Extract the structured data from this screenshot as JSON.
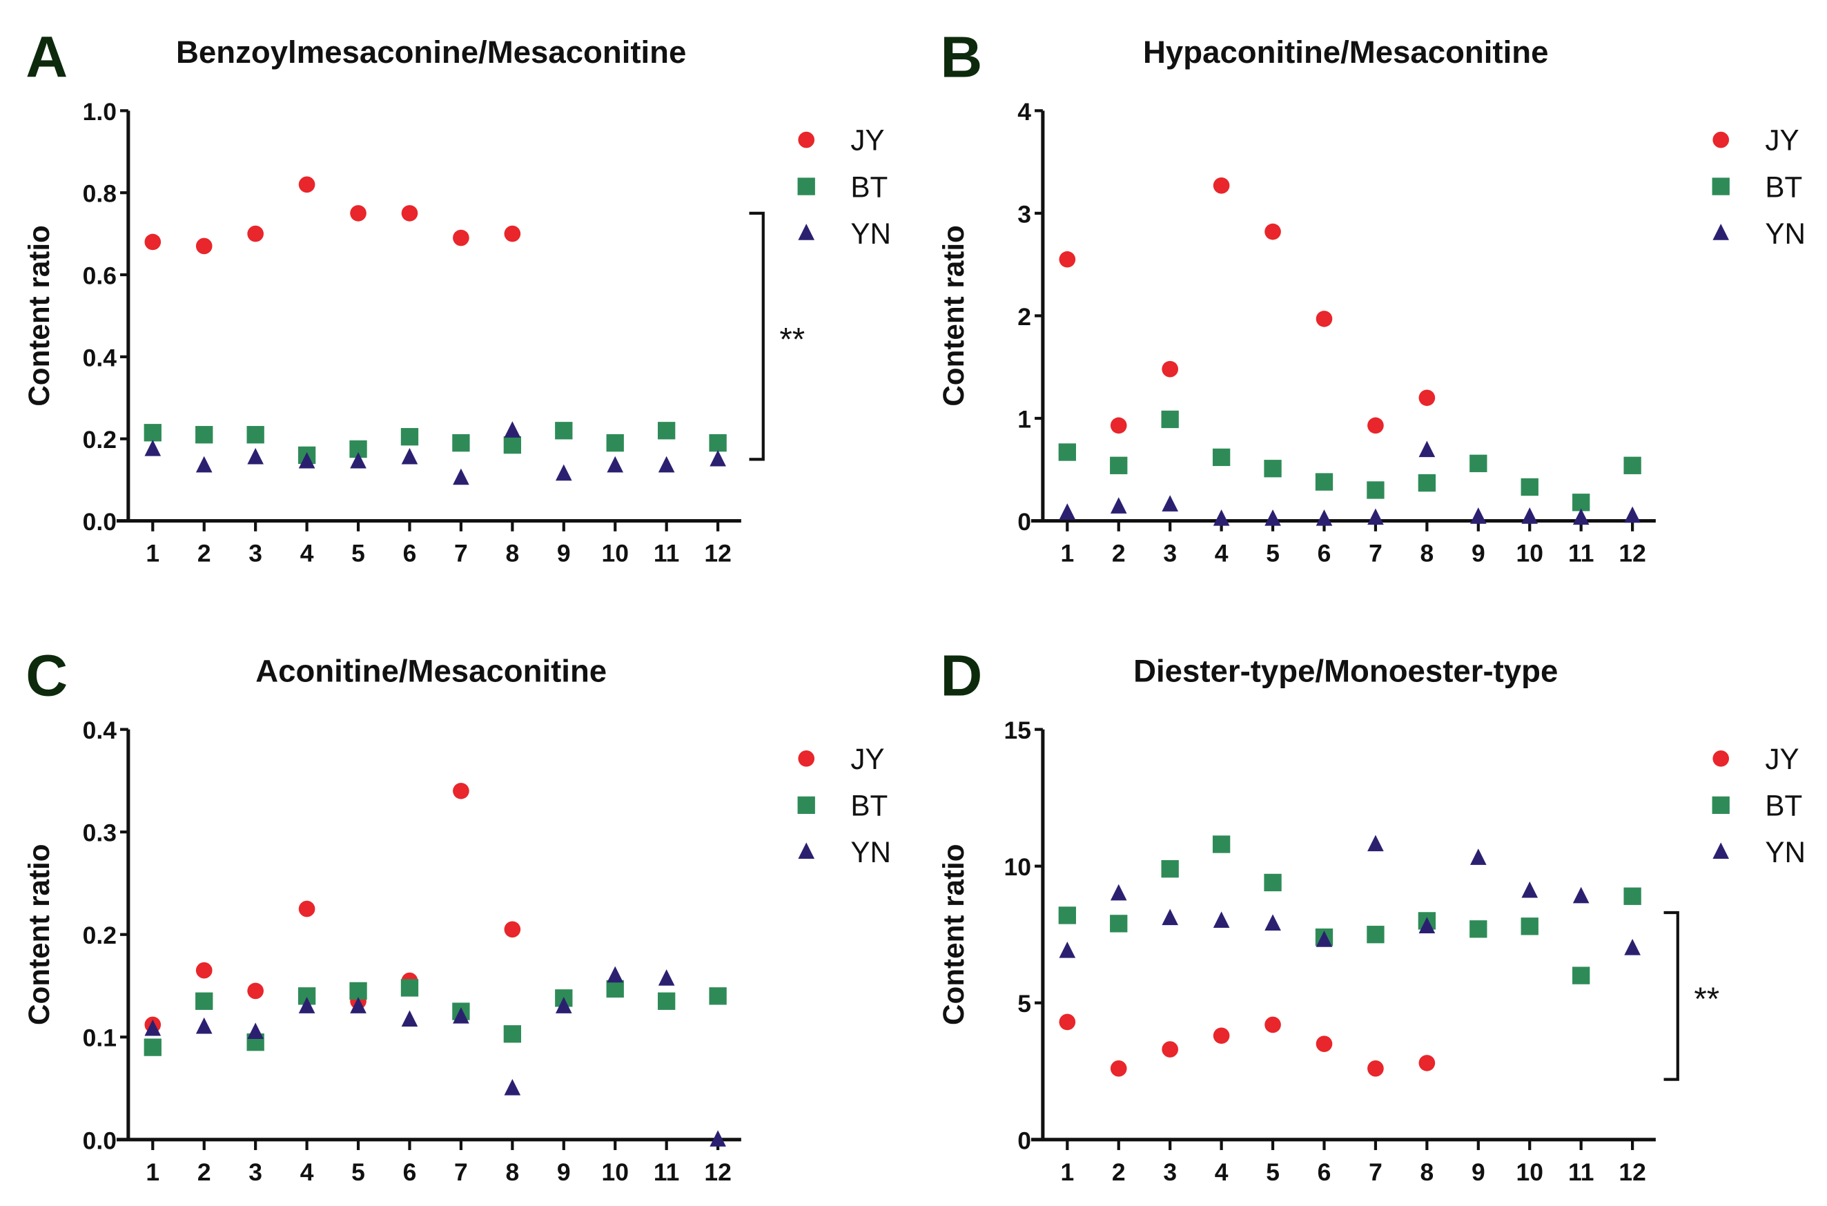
{
  "chart_data": [
    {
      "type": "scatter",
      "panel_letter": "A",
      "title": "Benzoylmesaconine/Mesaconitine",
      "xlabel": "",
      "ylabel": "Content ratio",
      "x": [
        1,
        2,
        3,
        4,
        5,
        6,
        7,
        8,
        9,
        10,
        11,
        12
      ],
      "ylim": [
        0,
        1.0
      ],
      "yticks": [
        "0.0",
        "0.2",
        "0.4",
        "0.6",
        "0.8",
        "1.0"
      ],
      "ytick_values": [
        0,
        0.2,
        0.4,
        0.6,
        0.8,
        1.0
      ],
      "legend_position": "right",
      "series": [
        {
          "name": "JY",
          "marker": "circle",
          "color": "#e8262b",
          "values": [
            0.68,
            0.67,
            0.7,
            0.82,
            0.75,
            0.75,
            0.69,
            0.7
          ]
        },
        {
          "name": "BT",
          "marker": "square",
          "color": "#2e8b57",
          "values": [
            0.215,
            0.21,
            0.21,
            0.16,
            0.175,
            0.205,
            0.19,
            0.185,
            0.22,
            0.19,
            0.22,
            0.19
          ]
        },
        {
          "name": "YN",
          "marker": "triangle",
          "color": "#2b2070",
          "values": [
            0.175,
            0.135,
            0.155,
            0.145,
            0.145,
            0.155,
            0.105,
            0.22,
            0.115,
            0.135,
            0.135,
            0.15
          ]
        }
      ],
      "significance": {
        "label": "**",
        "range": [
          0.15,
          0.75
        ]
      }
    },
    {
      "type": "scatter",
      "panel_letter": "B",
      "title": "Hypaconitine/Mesaconitine",
      "xlabel": "",
      "ylabel": "Content ratio",
      "x": [
        1,
        2,
        3,
        4,
        5,
        6,
        7,
        8,
        9,
        10,
        11,
        12
      ],
      "ylim": [
        0,
        4
      ],
      "yticks": [
        "0",
        "1",
        "2",
        "3",
        "4"
      ],
      "ytick_values": [
        0,
        1,
        2,
        3,
        4
      ],
      "legend_position": "right",
      "series": [
        {
          "name": "JY",
          "marker": "circle",
          "color": "#e8262b",
          "values": [
            2.55,
            0.93,
            1.48,
            3.27,
            2.82,
            1.97,
            0.93,
            1.2
          ]
        },
        {
          "name": "BT",
          "marker": "square",
          "color": "#2e8b57",
          "values": [
            0.67,
            0.54,
            0.99,
            0.62,
            0.51,
            0.38,
            0.3,
            0.37,
            0.56,
            0.33,
            0.18,
            0.54
          ]
        },
        {
          "name": "YN",
          "marker": "triangle",
          "color": "#2b2070",
          "values": [
            0.08,
            0.14,
            0.16,
            0.02,
            0.02,
            0.02,
            0.03,
            0.69,
            0.04,
            0.04,
            0.03,
            0.05
          ]
        }
      ]
    },
    {
      "type": "scatter",
      "panel_letter": "C",
      "title": "Aconitine/Mesaconitine",
      "xlabel": "",
      "ylabel": "Content ratio",
      "x": [
        1,
        2,
        3,
        4,
        5,
        6,
        7,
        8,
        9,
        10,
        11,
        12
      ],
      "ylim": [
        0,
        0.4
      ],
      "yticks": [
        "0.0",
        "0.1",
        "0.2",
        "0.3",
        "0.4"
      ],
      "ytick_values": [
        0,
        0.1,
        0.2,
        0.3,
        0.4
      ],
      "legend_position": "right",
      "series": [
        {
          "name": "JY",
          "marker": "circle",
          "color": "#e8262b",
          "values": [
            0.112,
            0.165,
            0.145,
            0.225,
            0.135,
            0.155,
            0.34,
            0.205
          ]
        },
        {
          "name": "BT",
          "marker": "square",
          "color": "#2e8b57",
          "values": [
            0.09,
            0.135,
            0.095,
            0.14,
            0.145,
            0.148,
            0.125,
            0.103,
            0.138,
            0.147,
            0.135,
            0.14
          ]
        },
        {
          "name": "YN",
          "marker": "triangle",
          "color": "#2b2070",
          "values": [
            0.108,
            0.11,
            0.105,
            0.13,
            0.13,
            0.117,
            0.12,
            0.05,
            0.13,
            0.16,
            0.157,
            0.0
          ]
        }
      ]
    },
    {
      "type": "scatter",
      "panel_letter": "D",
      "title": "Diester-type/Monoester-type",
      "xlabel": "",
      "ylabel": "Content ratio",
      "x": [
        1,
        2,
        3,
        4,
        5,
        6,
        7,
        8,
        9,
        10,
        11,
        12
      ],
      "ylim": [
        0,
        15
      ],
      "yticks": [
        "0",
        "5",
        "10",
        "15"
      ],
      "ytick_values": [
        0,
        5,
        10,
        15
      ],
      "legend_position": "right",
      "series": [
        {
          "name": "JY",
          "marker": "circle",
          "color": "#e8262b",
          "values": [
            4.3,
            2.6,
            3.3,
            3.8,
            4.2,
            3.5,
            2.6,
            2.8
          ]
        },
        {
          "name": "BT",
          "marker": "square",
          "color": "#2e8b57",
          "values": [
            8.2,
            7.9,
            9.9,
            10.8,
            9.4,
            7.4,
            7.5,
            8.0,
            7.7,
            7.8,
            6.0,
            8.9
          ]
        },
        {
          "name": "YN",
          "marker": "triangle",
          "color": "#2b2070",
          "values": [
            6.9,
            9.0,
            8.1,
            8.0,
            7.9,
            7.3,
            10.8,
            7.8,
            10.3,
            9.1,
            8.9,
            7.0
          ]
        }
      ],
      "significance": {
        "label": "**",
        "range": [
          2.2,
          8.3
        ]
      }
    }
  ]
}
